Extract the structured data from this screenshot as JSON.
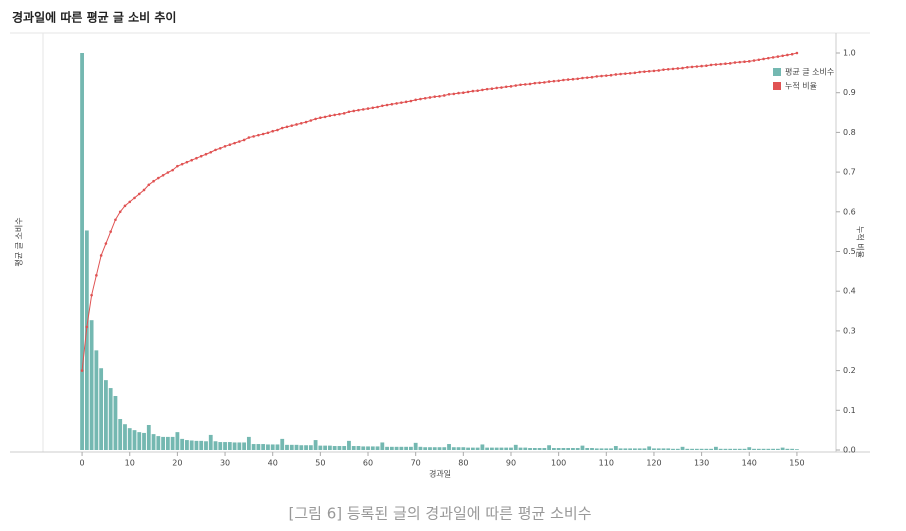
{
  "chart_data": {
    "type": "combo",
    "title": "경과일에 따른 평균 글 소비 추이",
    "xlabel": "경과일",
    "ylabel": "평균 글 소비수",
    "y2label": "누적 비율",
    "x": [
      0,
      1,
      2,
      3,
      4,
      5,
      6,
      7,
      8,
      9,
      10,
      11,
      12,
      13,
      14,
      15,
      16,
      17,
      18,
      19,
      20,
      21,
      22,
      23,
      24,
      25,
      26,
      27,
      28,
      29,
      30,
      31,
      32,
      33,
      34,
      35,
      36,
      37,
      38,
      39,
      40,
      41,
      42,
      43,
      44,
      45,
      46,
      47,
      48,
      49,
      50,
      51,
      52,
      53,
      54,
      55,
      56,
      57,
      58,
      59,
      60,
      61,
      62,
      63,
      64,
      65,
      66,
      67,
      68,
      69,
      70,
      71,
      72,
      73,
      74,
      75,
      76,
      77,
      78,
      79,
      80,
      81,
      82,
      83,
      84,
      85,
      86,
      87,
      88,
      89,
      90,
      91,
      92,
      93,
      94,
      95,
      96,
      97,
      98,
      99,
      100,
      101,
      102,
      103,
      104,
      105,
      106,
      107,
      108,
      109,
      110,
      111,
      112,
      113,
      114,
      115,
      116,
      117,
      118,
      119,
      120,
      121,
      122,
      123,
      124,
      125,
      126,
      127,
      128,
      129,
      130,
      131,
      132,
      133,
      134,
      135,
      136,
      137,
      138,
      139,
      140,
      141,
      142,
      143,
      144,
      145,
      146,
      147,
      148,
      149,
      150
    ],
    "xlim": [
      -8.2,
      158.2
    ],
    "xticks": [
      0,
      10,
      20,
      30,
      40,
      50,
      60,
      70,
      80,
      90,
      100,
      110,
      120,
      130,
      140,
      150
    ],
    "ylim": [
      0,
      1
    ],
    "y2lim": [
      0,
      1
    ],
    "y2ticks": [
      {
        "value": 0,
        "label": "0.0"
      },
      0.1,
      0.2,
      0.3,
      0.4,
      0.5,
      0.6,
      0.7,
      0.8,
      0.9,
      {
        "value": 1,
        "label": "1.0"
      }
    ],
    "grid": false,
    "legend": "upper right",
    "series": [
      {
        "name": "평균 글 소비수",
        "type": "bar",
        "axis": "y",
        "color": "#74b8b1",
        "values": [
          1.0,
          0.553,
          0.327,
          0.251,
          0.206,
          0.176,
          0.156,
          0.136,
          0.078,
          0.065,
          0.055,
          0.05,
          0.045,
          0.043,
          0.063,
          0.04,
          0.035,
          0.033,
          0.033,
          0.033,
          0.045,
          0.028,
          0.025,
          0.024,
          0.023,
          0.023,
          0.022,
          0.038,
          0.022,
          0.02,
          0.02,
          0.02,
          0.019,
          0.019,
          0.019,
          0.033,
          0.015,
          0.015,
          0.015,
          0.014,
          0.014,
          0.014,
          0.028,
          0.013,
          0.013,
          0.013,
          0.012,
          0.012,
          0.012,
          0.025,
          0.011,
          0.011,
          0.011,
          0.01,
          0.01,
          0.01,
          0.023,
          0.01,
          0.01,
          0.009,
          0.009,
          0.009,
          0.009,
          0.019,
          0.008,
          0.008,
          0.008,
          0.008,
          0.008,
          0.008,
          0.018,
          0.008,
          0.007,
          0.007,
          0.007,
          0.007,
          0.007,
          0.015,
          0.007,
          0.007,
          0.007,
          0.006,
          0.006,
          0.006,
          0.014,
          0.006,
          0.006,
          0.006,
          0.006,
          0.006,
          0.006,
          0.013,
          0.006,
          0.006,
          0.005,
          0.005,
          0.005,
          0.005,
          0.012,
          0.005,
          0.005,
          0.005,
          0.005,
          0.005,
          0.005,
          0.011,
          0.005,
          0.005,
          0.004,
          0.004,
          0.004,
          0.004,
          0.01,
          0.004,
          0.004,
          0.004,
          0.004,
          0.004,
          0.004,
          0.009,
          0.004,
          0.004,
          0.004,
          0.004,
          0.003,
          0.003,
          0.008,
          0.003,
          0.003,
          0.003,
          0.003,
          0.003,
          0.003,
          0.008,
          0.003,
          0.003,
          0.003,
          0.003,
          0.003,
          0.003,
          0.007,
          0.003,
          0.003,
          0.003,
          0.003,
          0.003,
          0.003,
          0.006,
          0.003,
          0.003,
          0.002
        ]
      },
      {
        "name": "누적 비율",
        "type": "line",
        "axis": "y2",
        "color": "#e05252",
        "values": [
          0.2,
          0.31,
          0.39,
          0.44,
          0.49,
          0.52,
          0.55,
          0.58,
          0.6,
          0.615,
          0.625,
          0.635,
          0.645,
          0.655,
          0.668,
          0.677,
          0.685,
          0.692,
          0.699,
          0.705,
          0.715,
          0.72,
          0.725,
          0.73,
          0.735,
          0.74,
          0.745,
          0.75,
          0.756,
          0.76,
          0.765,
          0.769,
          0.773,
          0.777,
          0.781,
          0.787,
          0.79,
          0.793,
          0.796,
          0.799,
          0.803,
          0.806,
          0.811,
          0.814,
          0.817,
          0.82,
          0.823,
          0.826,
          0.83,
          0.834,
          0.837,
          0.839,
          0.842,
          0.844,
          0.846,
          0.848,
          0.852,
          0.854,
          0.856,
          0.858,
          0.86,
          0.862,
          0.864,
          0.867,
          0.869,
          0.871,
          0.873,
          0.875,
          0.877,
          0.879,
          0.882,
          0.884,
          0.886,
          0.888,
          0.89,
          0.891,
          0.893,
          0.896,
          0.897,
          0.899,
          0.9,
          0.902,
          0.904,
          0.905,
          0.907,
          0.909,
          0.91,
          0.912,
          0.913,
          0.915,
          0.916,
          0.918,
          0.92,
          0.921,
          0.922,
          0.924,
          0.925,
          0.926,
          0.928,
          0.929,
          0.93,
          0.932,
          0.933,
          0.934,
          0.935,
          0.937,
          0.938,
          0.939,
          0.941,
          0.942,
          0.943,
          0.944,
          0.946,
          0.947,
          0.948,
          0.949,
          0.95,
          0.952,
          0.953,
          0.954,
          0.955,
          0.956,
          0.958,
          0.959,
          0.96,
          0.961,
          0.962,
          0.964,
          0.965,
          0.966,
          0.967,
          0.968,
          0.97,
          0.971,
          0.972,
          0.973,
          0.974,
          0.976,
          0.977,
          0.978,
          0.979,
          0.981,
          0.983,
          0.985,
          0.987,
          0.989,
          0.991,
          0.993,
          0.995,
          0.997,
          1.0
        ]
      }
    ]
  },
  "caption": "[그림 6] 등록된 글의 경과일에 따른 평균 소비수"
}
